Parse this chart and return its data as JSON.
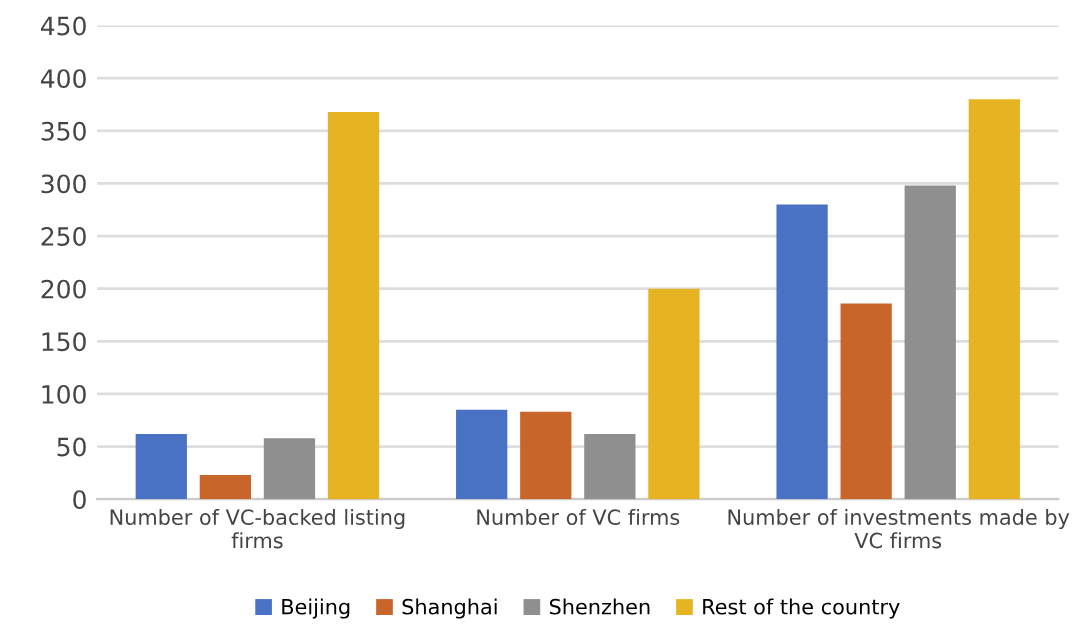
{
  "chart_data": {
    "type": "bar",
    "categories": [
      "Number of VC-backed listing\nfirms",
      "Number of VC firms",
      "Number of investments made by\nVC firms"
    ],
    "series": [
      {
        "name": "Beijing",
        "color": "#4a72c4",
        "values": [
          62,
          85,
          280
        ]
      },
      {
        "name": "Shanghai",
        "color": "#c8652a",
        "values": [
          23,
          83,
          186
        ]
      },
      {
        "name": "Shenzhen",
        "color": "#8f8f8f",
        "values": [
          58,
          62,
          298
        ]
      },
      {
        "name": "Rest of the country",
        "color": "#e6b422",
        "values": [
          368,
          200,
          380
        ]
      }
    ],
    "ylim": [
      0,
      450
    ],
    "yticks": [
      0,
      50,
      100,
      150,
      200,
      250,
      300,
      350,
      400,
      450
    ],
    "grid": "y",
    "legend": "bottom"
  }
}
